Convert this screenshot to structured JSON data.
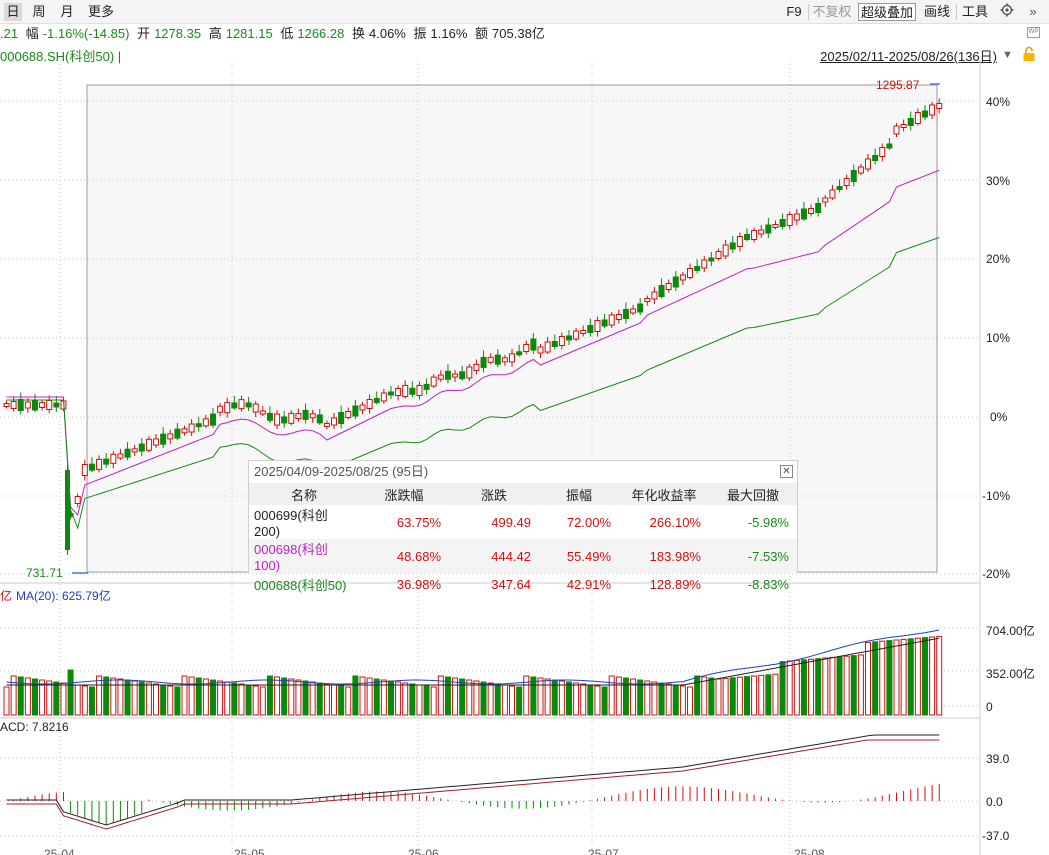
{
  "toolbar": {
    "tabs": [
      "日",
      "周",
      "月",
      "更多"
    ],
    "right_buttons": [
      "F9",
      "不复权",
      "超级叠加",
      "画线",
      "工具"
    ],
    "settings_icon": "gear-icon",
    "collapse_icon": "double-chevron-right-icon"
  },
  "quote": {
    "price_partial": ".21",
    "change_label": "幅",
    "change_value": "-1.16%(-14.85)",
    "open_label": "开",
    "open_value": "1278.35",
    "high_label": "高",
    "high_value": "1281.15",
    "low_label": "低",
    "low_value": "1266.28",
    "turnover_label": "换",
    "turnover_value": "4.06%",
    "amplitude_label": "振",
    "amplitude_value": "1.16%",
    "amount_label": "额",
    "amount_value": "705.38亿"
  },
  "symbol_line": "000688.SH(科创50) |",
  "date_range": "2025/02/11-2025/08/26(136日)",
  "main_axis": [
    "40%",
    "30%",
    "20%",
    "10%",
    "0%",
    "-10%",
    "-20%"
  ],
  "price_high_label": "1295.87",
  "price_low_label": "731.71",
  "volume": {
    "label_unit": "亿",
    "ma_label": "MA(20): 625.79亿",
    "axis": [
      "704.00亿",
      "352.00亿",
      "0"
    ]
  },
  "macd": {
    "label": "ACD: 7.8216",
    "axis": [
      "39.0",
      "0.0",
      "-37.0"
    ]
  },
  "x_axis": [
    "25-04",
    "25-05",
    "25-06",
    "25-07",
    "25-08"
  ],
  "stats": {
    "header": "2025/04/09-2025/08/25 (95日)",
    "columns": [
      "名称",
      "涨跌幅",
      "涨跌",
      "振幅",
      "年化收益率",
      "最大回撤"
    ],
    "rows": [
      {
        "name": "000699(科创200)",
        "change_pct": "63.75%",
        "change": "499.49",
        "amplitude": "72.00%",
        "annual": "266.10%",
        "drawdown": "-5.98%",
        "color": "#222222"
      },
      {
        "name": "000698(科创100)",
        "change_pct": "48.68%",
        "change": "444.42",
        "amplitude": "55.49%",
        "annual": "183.98%",
        "drawdown": "-7.53%",
        "color": "#c020c0"
      },
      {
        "name": "000688(科创50)",
        "change_pct": "36.98%",
        "change": "347.64",
        "amplitude": "42.91%",
        "annual": "128.89%",
        "drawdown": "-8.83%",
        "color": "#1a8a1a"
      }
    ]
  },
  "colors": {
    "up": "#d01010",
    "down": "#0a8a0a",
    "kc100_line": "#c020c0",
    "kc50_line": "#1a8a1a",
    "ma_line": "#2040c0"
  },
  "chart_data": {
    "type": "candlestick",
    "title": "000688.SH(科创50)",
    "y_axis_percent_range": [
      -20,
      40
    ],
    "x": [
      "25-04",
      "25-05",
      "25-06",
      "25-07",
      "25-08"
    ],
    "series": [
      {
        "name": "000698(科创100)",
        "values_pct_approx": [
          0,
          -12,
          0,
          -1,
          -2,
          -3,
          -1,
          -4,
          -1,
          7,
          12,
          20,
          31,
          33
        ]
      },
      {
        "name": "000688(科创50)",
        "values_pct_approx": [
          0,
          -14,
          -1,
          -2,
          -4,
          -6,
          -2,
          -3,
          3,
          4,
          10,
          15,
          25,
          24
        ]
      }
    ],
    "price_labels": {
      "high": 1295.87,
      "low": 731.71
    }
  }
}
